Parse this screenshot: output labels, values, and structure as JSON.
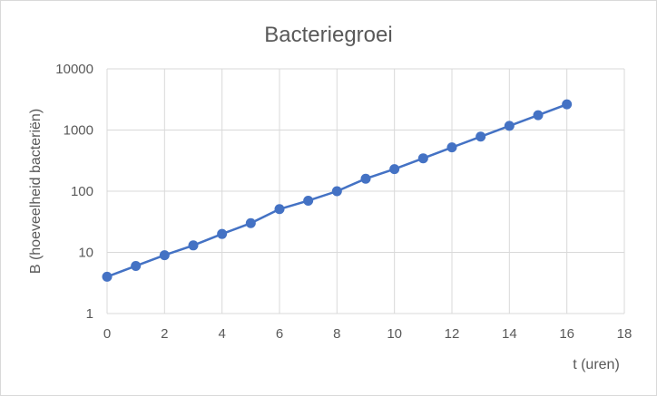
{
  "chart_data": {
    "type": "line",
    "title": "Bacteriegroei",
    "xlabel": "t (uren)",
    "ylabel": "B (hoeveelheid bacteriën)",
    "xlim": [
      0,
      18
    ],
    "ylim": [
      1,
      10000
    ],
    "yscale": "log",
    "x_ticks": [
      0,
      2,
      4,
      6,
      8,
      10,
      12,
      14,
      16,
      18
    ],
    "y_ticks": [
      1,
      10,
      100,
      1000,
      10000
    ],
    "grid": true,
    "legend": "none",
    "series": [
      {
        "color": "#4472c4",
        "x": [
          0,
          1,
          2,
          3,
          4,
          5,
          6,
          7,
          8,
          9,
          10,
          11,
          12,
          13,
          14,
          15,
          16
        ],
        "y": [
          4,
          6,
          9,
          13,
          20,
          30,
          51,
          70,
          100,
          160,
          230,
          345,
          520,
          780,
          1170,
          1750,
          2630
        ]
      }
    ]
  }
}
